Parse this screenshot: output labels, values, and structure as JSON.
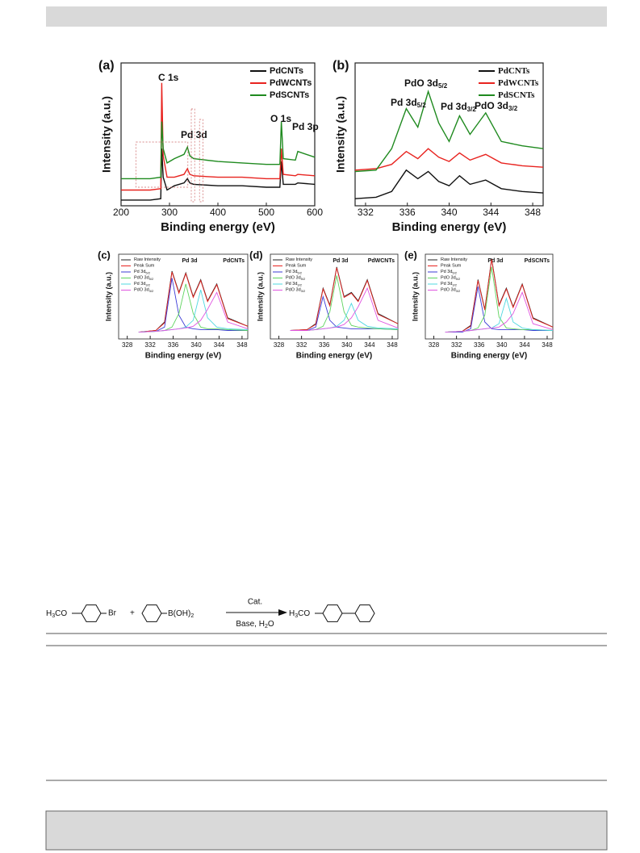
{
  "chart_data": [
    {
      "type": "line",
      "panel_label": "(a)",
      "xlabel": "Binding energy (eV)",
      "ylabel": "Intensity (a.u.)",
      "xlim": [
        200,
        600
      ],
      "ylim": [
        0,
        100
      ],
      "xticks": [
        200,
        300,
        400,
        500,
        600
      ],
      "x": [
        200,
        260,
        282,
        284,
        287,
        295,
        310,
        330,
        337,
        342,
        350,
        400,
        450,
        500,
        528,
        531,
        535,
        560,
        565,
        600
      ],
      "series": [
        {
          "name": "PdCNTs",
          "color": "#111111",
          "values": [
            4,
            4,
            5,
            40,
            20,
            11,
            14,
            16,
            19,
            16,
            15,
            14,
            14,
            13,
            13,
            31,
            15,
            15,
            16,
            15
          ]
        },
        {
          "name": "PdWCNTs",
          "color": "#e8231f",
          "values": [
            11,
            11,
            12,
            86,
            35,
            20,
            20,
            22,
            26,
            22,
            21,
            20,
            20,
            19,
            19,
            40,
            22,
            21,
            22,
            21
          ]
        },
        {
          "name": "PdSCNTs",
          "color": "#1f8a1f",
          "values": [
            19,
            19,
            20,
            59,
            40,
            30,
            33,
            36,
            41,
            35,
            33,
            31,
            30,
            29,
            29,
            59,
            33,
            32,
            38,
            34
          ]
        }
      ],
      "annotations": [
        {
          "text": "C 1s"
        },
        {
          "text": "Pd 3d"
        },
        {
          "text": "O 1s"
        },
        {
          "text": "Pd 3p"
        }
      ]
    },
    {
      "type": "line",
      "panel_label": "(b)",
      "xlabel": "Binding energy (eV)",
      "ylabel": "Intensity (a.u.)",
      "xlim": [
        331,
        349
      ],
      "ylim": [
        0,
        100
      ],
      "xticks": [
        332,
        336,
        340,
        344,
        348
      ],
      "x": [
        331,
        333,
        334.5,
        335.9,
        337,
        338,
        339,
        340,
        341,
        342,
        343.5,
        345,
        347,
        349
      ],
      "series": [
        {
          "name": "PdCNTs",
          "color": "#111111",
          "values": [
            5,
            6,
            10,
            25,
            19,
            24,
            17,
            14,
            21,
            15,
            18,
            12,
            10,
            9
          ]
        },
        {
          "name": "PdWCNTs",
          "color": "#e8231f",
          "values": [
            25,
            26,
            29,
            38,
            33,
            40,
            34,
            31,
            37,
            32,
            36,
            30,
            28,
            27
          ]
        },
        {
          "name": "PdSCNTs",
          "color": "#1f8a1f",
          "values": [
            24,
            25,
            40,
            68,
            55,
            80,
            58,
            45,
            63,
            50,
            65,
            45,
            42,
            40
          ]
        }
      ],
      "annotations": [
        {
          "text": "Pd 3d",
          "sub": "5/2"
        },
        {
          "text": "PdO 3d",
          "sub": "5/2"
        },
        {
          "text": "Pd 3d",
          "sub": "3/2"
        },
        {
          "text": "PdO 3d",
          "sub": "3/2"
        }
      ]
    },
    {
      "type": "line",
      "panel_label": "(c)",
      "title": "Pd 3d",
      "subtitle": "PdCNTs",
      "xlabel": "Binding energy (eV)",
      "ylabel": "Intensity (a.u.)",
      "xlim": [
        326.5,
        349
      ],
      "ylim": [
        0,
        100
      ],
      "xticks": [
        328,
        332,
        336,
        340,
        344,
        348
      ],
      "x": [
        330,
        333,
        334.5,
        335.8,
        337,
        338.2,
        339.5,
        340.8,
        342,
        343.6,
        345.5,
        349
      ],
      "series": [
        {
          "name": "Raw Intensity",
          "color": "#222222",
          "values": [
            8,
            10,
            20,
            80,
            55,
            78,
            50,
            70,
            45,
            65,
            25,
            15
          ]
        },
        {
          "name": "Peak Sum",
          "color": "#e8231f",
          "values": [
            8,
            10,
            19,
            79,
            54,
            77,
            49,
            69,
            44,
            64,
            24,
            15
          ]
        },
        {
          "name": "Pd 3d",
          "name_sub": "5/2",
          "color": "#3b3bd6",
          "values": [
            8,
            9,
            14,
            72,
            28,
            14,
            12,
            11,
            11,
            11,
            10,
            10
          ]
        },
        {
          "name": "PdO 3d",
          "name_sub": "5/2",
          "color": "#5ed35e",
          "values": [
            8,
            9,
            10,
            14,
            30,
            65,
            30,
            14,
            12,
            12,
            11,
            10
          ]
        },
        {
          "name": "Pd 3d",
          "name_sub": "3/2",
          "color": "#4fd8e0",
          "values": [
            8,
            9,
            10,
            11,
            12,
            14,
            22,
            58,
            25,
            14,
            12,
            11
          ]
        },
        {
          "name": "PdO 3d",
          "name_sub": "3/2",
          "color": "#e055e0",
          "values": [
            8,
            9,
            10,
            11,
            12,
            13,
            15,
            22,
            35,
            55,
            20,
            12
          ]
        }
      ]
    },
    {
      "type": "line",
      "panel_label": "(d)",
      "title": "Pd 3d",
      "subtitle": "PdWCNTs",
      "xlabel": "Binding energy (eV)",
      "ylabel": "Intensity (a.u.)",
      "xlim": [
        326.5,
        349
      ],
      "ylim": [
        0,
        100
      ],
      "xticks": [
        328,
        332,
        336,
        340,
        344,
        348
      ],
      "x": [
        330,
        333,
        334.5,
        335.8,
        337,
        338.2,
        339.5,
        340.8,
        342,
        343.6,
        345.5,
        349
      ],
      "series": [
        {
          "name": "Raw Intensity",
          "color": "#222222",
          "values": [
            10,
            11,
            18,
            60,
            40,
            85,
            50,
            55,
            45,
            70,
            30,
            18
          ]
        },
        {
          "name": "Peak Sum",
          "color": "#e8231f",
          "values": [
            10,
            11,
            17,
            59,
            39,
            84,
            49,
            54,
            44,
            69,
            29,
            18
          ]
        },
        {
          "name": "Pd 3d",
          "name_sub": "5/2",
          "color": "#3b3bd6",
          "values": [
            10,
            10,
            14,
            50,
            22,
            14,
            13,
            12,
            12,
            12,
            12,
            11
          ]
        },
        {
          "name": "PdO 3d",
          "name_sub": "5/2",
          "color": "#5ed35e",
          "values": [
            10,
            10,
            11,
            15,
            32,
            75,
            32,
            16,
            14,
            13,
            12,
            11
          ]
        },
        {
          "name": "Pd 3d",
          "name_sub": "3/2",
          "color": "#4fd8e0",
          "values": [
            10,
            10,
            11,
            12,
            13,
            15,
            22,
            42,
            22,
            15,
            13,
            12
          ]
        },
        {
          "name": "PdO 3d",
          "name_sub": "3/2",
          "color": "#e055e0",
          "values": [
            10,
            10,
            11,
            12,
            13,
            14,
            17,
            25,
            38,
            60,
            22,
            13
          ]
        }
      ]
    },
    {
      "type": "line",
      "panel_label": "(e)",
      "title": "Pd 3d",
      "subtitle": "PdSCNTs",
      "xlabel": "Binding energy (eV)",
      "ylabel": "Intensity (a.u.)",
      "xlim": [
        326.5,
        349
      ],
      "ylim": [
        0,
        100
      ],
      "xticks": [
        328,
        332,
        336,
        340,
        344,
        348
      ],
      "x": [
        330,
        333,
        334.5,
        335.8,
        337,
        338.2,
        339.5,
        340.8,
        342,
        343.6,
        345.5,
        349
      ],
      "series": [
        {
          "name": "Raw Intensity",
          "color": "#222222",
          "values": [
            8,
            9,
            16,
            70,
            35,
            95,
            40,
            60,
            38,
            65,
            25,
            14
          ]
        },
        {
          "name": "Peak Sum",
          "color": "#e8231f",
          "values": [
            8,
            9,
            15,
            69,
            34,
            94,
            39,
            59,
            37,
            64,
            24,
            14
          ]
        },
        {
          "name": "Pd 3d",
          "name_sub": "5/2",
          "color": "#3b3bd6",
          "values": [
            8,
            8,
            12,
            62,
            20,
            12,
            11,
            11,
            11,
            11,
            10,
            10
          ]
        },
        {
          "name": "PdO 3d",
          "name_sub": "5/2",
          "color": "#5ed35e",
          "values": [
            8,
            9,
            10,
            13,
            28,
            85,
            26,
            13,
            12,
            11,
            11,
            10
          ]
        },
        {
          "name": "Pd 3d",
          "name_sub": "3/2",
          "color": "#4fd8e0",
          "values": [
            8,
            9,
            10,
            11,
            12,
            13,
            18,
            48,
            20,
            13,
            11,
            10
          ]
        },
        {
          "name": "PdO 3d",
          "name_sub": "3/2",
          "color": "#e055e0",
          "values": [
            8,
            9,
            10,
            11,
            12,
            13,
            14,
            20,
            30,
            55,
            18,
            11
          ]
        }
      ]
    }
  ],
  "scheme": {
    "reactant1": {
      "prefix": "H",
      "sub": "3",
      "suffix": "CO",
      "substituent": "Br"
    },
    "plus": "+",
    "reactant2": {
      "group": "B(OH)",
      "sub": "2"
    },
    "above_arrow": "Cat.",
    "below_arrow": {
      "text": "Base, H",
      "sub": "2",
      "tail": "O"
    },
    "product": {
      "prefix": "H",
      "sub": "3",
      "suffix": "CO"
    }
  }
}
